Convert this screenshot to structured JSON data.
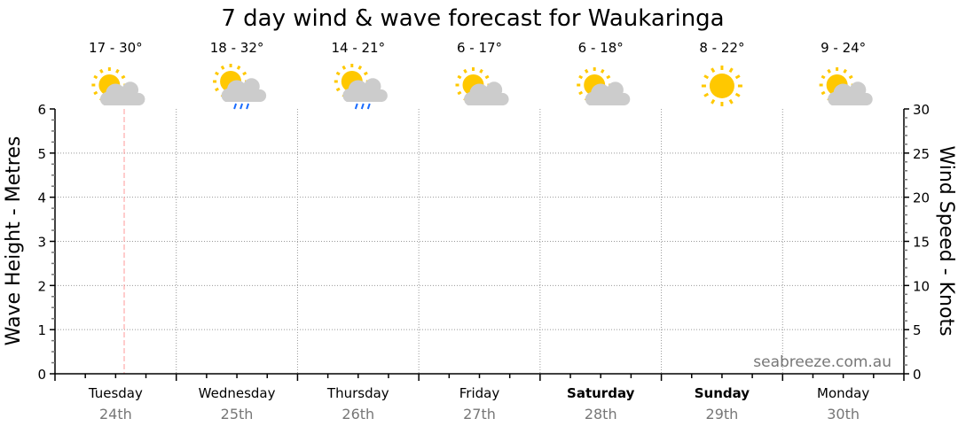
{
  "chart_data": {
    "type": "line",
    "title": "7 day wind & wave forecast for Waukaringa",
    "ylabel_left": "Wave Height - Metres",
    "ylabel_right": "Wind Speed - Knots",
    "ylim_left": [
      0,
      6
    ],
    "ylim_right": [
      0,
      30
    ],
    "yticks_left": [
      "0",
      "1",
      "2",
      "3",
      "4",
      "5",
      "6"
    ],
    "yticks_right": [
      "0",
      "5",
      "10",
      "15",
      "20",
      "25",
      "30"
    ],
    "grid": true,
    "series": [],
    "days": [
      {
        "name": "Tuesday",
        "date": "24th",
        "temp": "17 - 30°",
        "icon": "partly-cloudy-icon",
        "bold": false
      },
      {
        "name": "Wednesday",
        "date": "25th",
        "temp": "18 - 32°",
        "icon": "partly-cloudy-rain-icon",
        "bold": false
      },
      {
        "name": "Thursday",
        "date": "26th",
        "temp": "14 - 21°",
        "icon": "partly-cloudy-rain-icon",
        "bold": false
      },
      {
        "name": "Friday",
        "date": "27th",
        "temp": "6 - 17°",
        "icon": "partly-cloudy-icon",
        "bold": false
      },
      {
        "name": "Saturday",
        "date": "28th",
        "temp": "6 - 18°",
        "icon": "partly-cloudy-icon",
        "bold": true
      },
      {
        "name": "Sunday",
        "date": "29th",
        "temp": "8 - 22°",
        "icon": "sunny-icon",
        "bold": true
      },
      {
        "name": "Monday",
        "date": "30th",
        "temp": "9 - 24°",
        "icon": "partly-cloudy-icon",
        "bold": false
      }
    ],
    "watermark": "seabreeze.com.au",
    "colors": {
      "now_line": "#ff9999",
      "grid": "#999999",
      "sun": "#ffc800",
      "cloud": "#cccccc",
      "rain": "#1a6cff"
    }
  }
}
